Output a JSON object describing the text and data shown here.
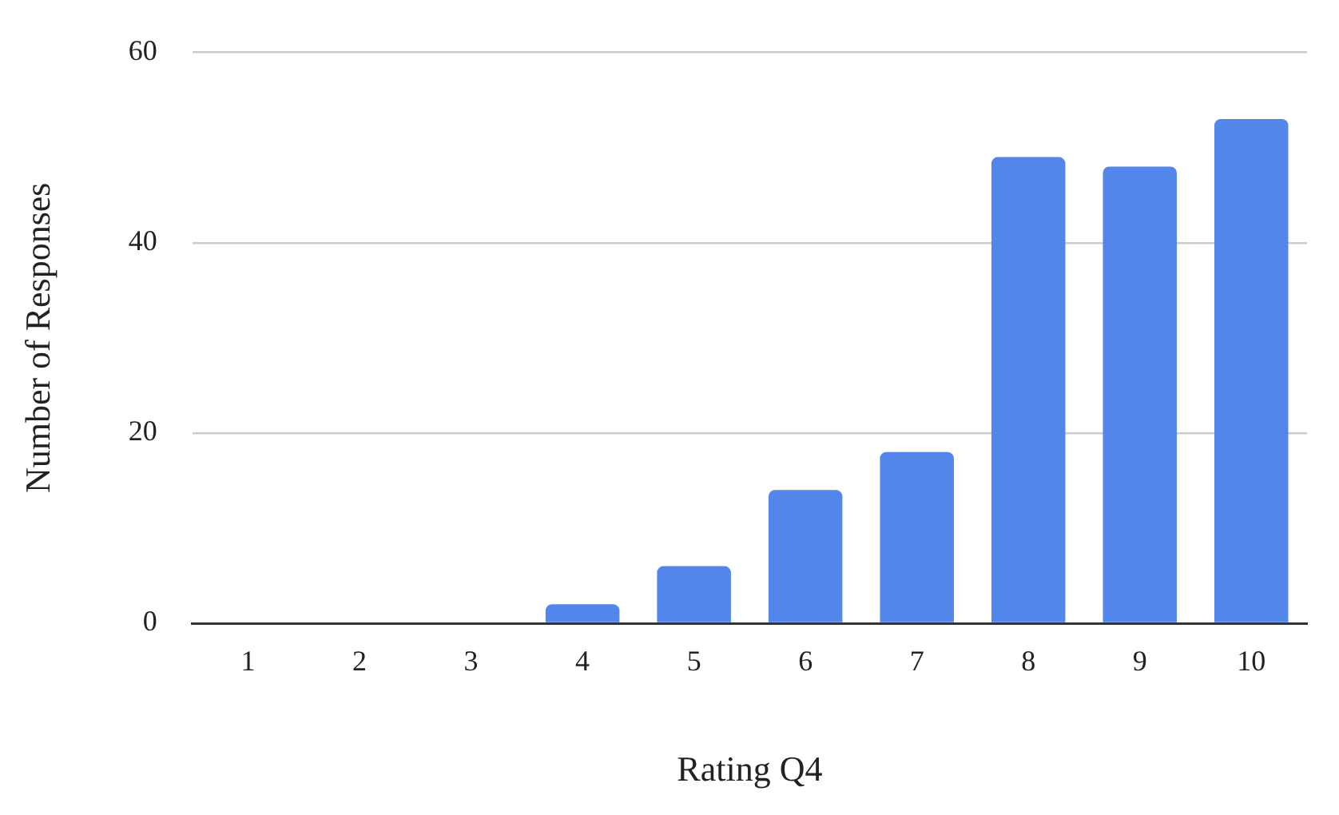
{
  "chart_data": {
    "type": "bar",
    "xlabel": "Rating Q4",
    "ylabel": "Number of Responses",
    "categories": [
      "1",
      "2",
      "3",
      "4",
      "5",
      "6",
      "7",
      "8",
      "9",
      "10"
    ],
    "values": [
      0,
      0,
      0,
      2,
      6,
      14,
      18,
      49,
      48,
      53
    ],
    "color": "#5286ea",
    "ylim": [
      0,
      60
    ],
    "yticks": [
      0,
      20,
      40,
      60
    ],
    "grid": "y",
    "legend": false
  }
}
